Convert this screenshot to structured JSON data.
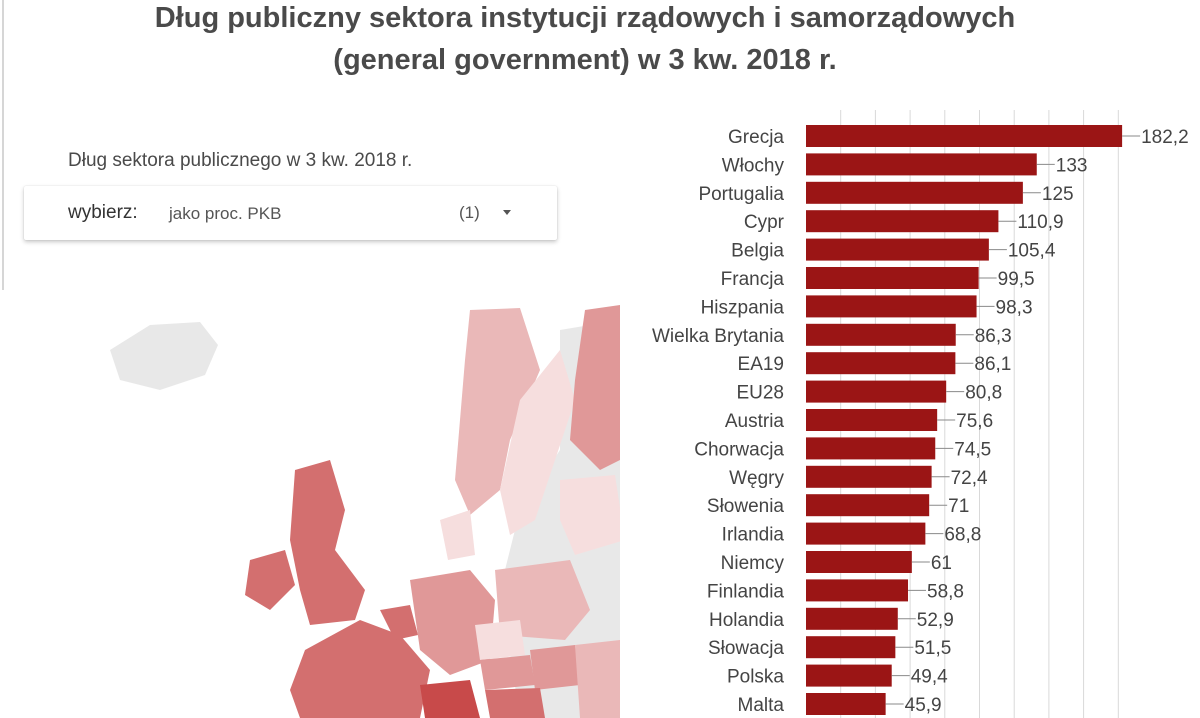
{
  "title": {
    "line1": "Dług publiczny sektora instytucji rządowych i samorządowych",
    "line2": "(general government) w 3 kw. 2018 r."
  },
  "selector": {
    "heading": "Dług sektora publicznego w 3 kw. 2018 r.",
    "key": "wybierz:",
    "value": "jako proc. PKB",
    "count": "(1)",
    "icon": "chevron-down-icon"
  },
  "map": {
    "land_color": "#e8e8e8",
    "water_color": "#ffffff",
    "palette": [
      "#f6dede",
      "#eab8b8",
      "#e09898",
      "#d36f6f",
      "#c84a4a"
    ]
  },
  "colors": {
    "bar": "#9b1515",
    "title": "#4a4a4a",
    "grid": "#d9d9d9"
  },
  "chart_data": {
    "type": "bar",
    "orientation": "horizontal",
    "title": "",
    "xlabel": "",
    "ylabel": "",
    "xlim": [
      0,
      190
    ],
    "grid": true,
    "categories": [
      "Grecja",
      "Włochy",
      "Portugalia",
      "Cypr",
      "Belgia",
      "Francja",
      "Hiszpania",
      "Wielka Brytania",
      "EA19",
      "EU28",
      "Austria",
      "Chorwacja",
      "Węgry",
      "Słowenia",
      "Irlandia",
      "Niemcy",
      "Finlandia",
      "Holandia",
      "Słowacja",
      "Polska",
      "Malta"
    ],
    "values": [
      182.2,
      133,
      125,
      110.9,
      105.4,
      99.5,
      98.3,
      86.3,
      86.1,
      80.8,
      75.6,
      74.5,
      72.4,
      71,
      68.8,
      61,
      58.8,
      52.9,
      51.5,
      49.4,
      45.9
    ],
    "value_labels": [
      "182,2",
      "133",
      "125",
      "110,9",
      "105,4",
      "99,5",
      "98,3",
      "86,3",
      "86,1",
      "80,8",
      "75,6",
      "74,5",
      "72,4",
      "71",
      "68,8",
      "61",
      "58,8",
      "52,9",
      "51,5",
      "49,4",
      "45,9"
    ]
  }
}
